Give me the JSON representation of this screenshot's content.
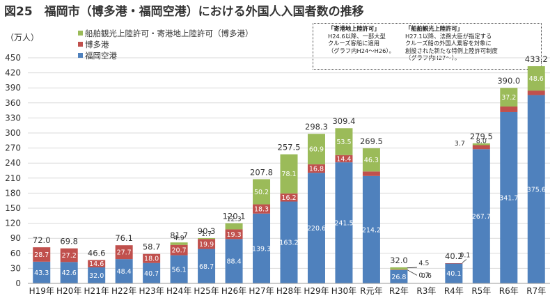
{
  "title": "図25　福岡市（博多港・福岡空港）における外国人入国者数の推移",
  "notes": [
    {
      "title": "「寄港地上陸許可」",
      "body": "H24.6以降、一部大型\nクルーズ客船に適用\n（グラフ内H24～H26）。"
    },
    {
      "title": "「船舶観光上陸許可」",
      "body": "H27.1以降、法務大臣が指定する\nクルーズ船の外国人乗客を対象に\n創設された新たな特例上陸許可制度\n（グラフ内H27～）。"
    }
  ],
  "colors": {
    "airport": "#4f81bd",
    "port": "#c0504d",
    "cruise": "#9bbb59"
  },
  "chart_data": {
    "type": "bar",
    "stacked": true,
    "ylabel": "（万人）",
    "ylim": [
      0,
      450
    ],
    "yticks": [
      0,
      30,
      60,
      90,
      120,
      150,
      180,
      210,
      240,
      270,
      300,
      330,
      360,
      390,
      420,
      450
    ],
    "legend_position": "top-left",
    "grid": true,
    "categories": [
      "H19年",
      "H20年",
      "H21年",
      "H22年",
      "H23年",
      "H24年",
      "H25年",
      "H26年",
      "H27年",
      "H28年",
      "H29年",
      "H30年",
      "R元年",
      "R2年",
      "R3年",
      "R4年",
      "R5年",
      "R6年",
      "R7年"
    ],
    "series": [
      {
        "name": "福岡空港",
        "values": [
          43.3,
          42.6,
          32.0,
          48.4,
          40.7,
          56.1,
          68.7,
          88.4,
          139.3,
          163.2,
          220.6,
          241.5,
          214.2,
          26.8,
          0.6,
          40.1,
          267.7,
          341.7,
          375.6
        ],
        "labels": [
          "43.3",
          "42.6",
          "32.0",
          "48.4",
          "40.7",
          "56.1",
          "68.7",
          "88.4",
          "139.3",
          "163.2",
          "220.6",
          "241.5",
          "214.2",
          "26.8",
          "0.6",
          "40.1",
          "267.7",
          "341.7",
          "375.6"
        ]
      },
      {
        "name": "博多港",
        "values": [
          28.7,
          27.2,
          14.6,
          27.7,
          18.0,
          20.7,
          19.9,
          19.3,
          18.3,
          16.2,
          16.8,
          14.4,
          9.0,
          0.7,
          0,
          0.1,
          8.0,
          11.1,
          9.0
        ],
        "labels": [
          "28.7",
          "27.2",
          "14.6",
          "27.7",
          "18.0",
          "20.7",
          "19.9",
          "19.3",
          "18.3",
          "16.2",
          "16.8",
          "14.4",
          "9.0",
          "0.7",
          "",
          "0.1",
          "8.0",
          "11.1",
          "9.0"
        ]
      },
      {
        "name": "船舶観光上陸許可・寄港地上陸許可（博多港）",
        "values": [
          0,
          0,
          0,
          0,
          0,
          4.9,
          1.7,
          12.3,
          50.2,
          78.1,
          60.9,
          53.5,
          46.3,
          4.5,
          0,
          0,
          3.7,
          37.2,
          48.6
        ],
        "labels": [
          "",
          "",
          "",
          "",
          "",
          "4.9",
          "1.7",
          "12.3",
          "50.2",
          "78.1",
          "60.9",
          "53.5",
          "46.3",
          "4.5",
          "",
          "",
          "3.7",
          "37.2",
          "48.6"
        ]
      }
    ],
    "totals": [
      "72.0",
      "69.8",
      "46.6",
      "76.1",
      "58.7",
      "81.7",
      "90.3",
      "120.1",
      "207.8",
      "257.5",
      "298.3",
      "309.4",
      "269.5",
      "32.0",
      "",
      "40.2",
      "279.5",
      "390.0",
      "433.2"
    ]
  }
}
